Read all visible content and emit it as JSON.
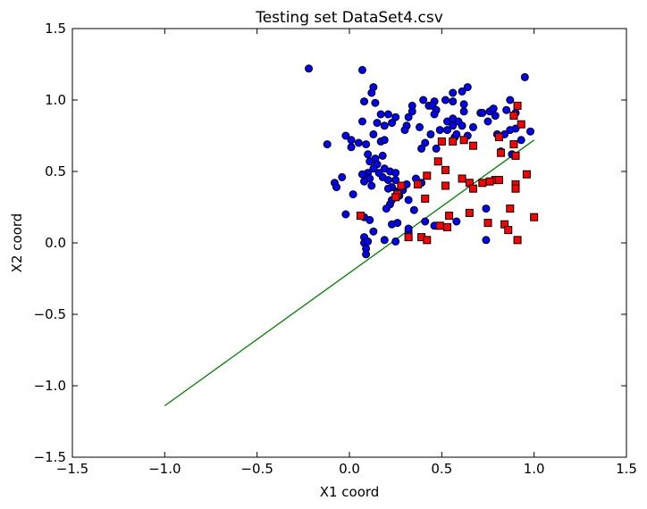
{
  "chart_data": {
    "type": "scatter",
    "title": "Testing set DataSet4.csv",
    "xlabel": "X1 coord",
    "ylabel": "X2 coord",
    "xlim": [
      -1.5,
      1.5
    ],
    "ylim": [
      -1.5,
      1.5
    ],
    "xticks": [
      -1.5,
      -1.0,
      -0.5,
      0.0,
      0.5,
      1.0,
      1.5
    ],
    "yticks": [
      -1.5,
      -1.0,
      -0.5,
      0.0,
      0.5,
      1.0,
      1.5
    ],
    "xtick_labels": [
      "−1.5",
      "−1.0",
      "−0.5",
      "0.0",
      "0.5",
      "1.0",
      "1.5"
    ],
    "ytick_labels": [
      "−1.5",
      "−1.0",
      "−0.5",
      "0.0",
      "0.5",
      "1.0",
      "1.5"
    ],
    "grid": false,
    "series": [
      {
        "marker": "circle",
        "color": "#0000ff",
        "points": [
          [
            -0.22,
            1.22
          ],
          [
            0.07,
            1.21
          ],
          [
            0.12,
            1.05
          ],
          [
            0.13,
            1.09
          ],
          [
            0.08,
            0.99
          ],
          [
            0.14,
            0.98
          ],
          [
            0.17,
            0.9
          ],
          [
            0.21,
            0.9
          ],
          [
            0.15,
            0.84
          ],
          [
            0.19,
            0.82
          ],
          [
            0.23,
            0.84
          ],
          [
            0.07,
            0.85
          ],
          [
            0.25,
            0.88
          ],
          [
            0.32,
            0.88
          ],
          [
            0.34,
            0.92
          ],
          [
            0.34,
            0.96
          ],
          [
            0.38,
            0.81
          ],
          [
            0.31,
            0.82
          ],
          [
            0.3,
            0.79
          ],
          [
            0.4,
            1.0
          ],
          [
            0.43,
            0.96
          ],
          [
            0.46,
            0.99
          ],
          [
            0.45,
            0.96
          ],
          [
            0.47,
            0.93
          ],
          [
            0.46,
            0.9
          ],
          [
            0.52,
            1.0
          ],
          [
            0.56,
            0.99
          ],
          [
            0.61,
            1.06
          ],
          [
            0.64,
            1.09
          ],
          [
            0.56,
            1.05
          ],
          [
            0.62,
            0.97
          ],
          [
            0.62,
            0.92
          ],
          [
            0.53,
            0.85
          ],
          [
            0.56,
            0.87
          ],
          [
            0.59,
            0.85
          ],
          [
            0.61,
            0.82
          ],
          [
            0.56,
            0.82
          ],
          [
            0.53,
            0.79
          ],
          [
            0.49,
            0.79
          ],
          [
            0.44,
            0.76
          ],
          [
            0.41,
            0.7
          ],
          [
            0.39,
            0.66
          ],
          [
            0.47,
            0.66
          ],
          [
            0.57,
            0.74
          ],
          [
            0.58,
            0.76
          ],
          [
            0.64,
            0.75
          ],
          [
            0.67,
            0.81
          ],
          [
            0.71,
            0.91
          ],
          [
            0.72,
            0.91
          ],
          [
            0.76,
            0.92
          ],
          [
            0.75,
            0.85
          ],
          [
            0.79,
            0.89
          ],
          [
            0.78,
            0.94
          ],
          [
            0.85,
            0.93
          ],
          [
            0.87,
            1.0
          ],
          [
            0.9,
            0.91
          ],
          [
            0.9,
            0.8
          ],
          [
            0.87,
            0.79
          ],
          [
            0.84,
            0.76
          ],
          [
            0.93,
            0.72
          ],
          [
            0.88,
            0.62
          ],
          [
            0.82,
            0.64
          ],
          [
            0.95,
            1.16
          ],
          [
            0.98,
            0.78
          ],
          [
            0.8,
            0.76
          ],
          [
            -0.12,
            0.69
          ],
          [
            -0.02,
            0.75
          ],
          [
            0.01,
            0.72
          ],
          [
            0.01,
            0.67
          ],
          [
            0.05,
            0.7
          ],
          [
            0.09,
            0.69
          ],
          [
            0.13,
            0.76
          ],
          [
            0.17,
            0.71
          ],
          [
            0.19,
            0.72
          ],
          [
            0.1,
            0.62
          ],
          [
            0.11,
            0.57
          ],
          [
            0.14,
            0.59
          ],
          [
            0.15,
            0.55
          ],
          [
            0.18,
            0.61
          ],
          [
            0.19,
            0.52
          ],
          [
            0.22,
            0.5
          ],
          [
            0.25,
            0.49
          ],
          [
            0.25,
            0.44
          ],
          [
            0.21,
            0.44
          ],
          [
            0.18,
            0.46
          ],
          [
            0.16,
            0.49
          ],
          [
            0.13,
            0.52
          ],
          [
            0.1,
            0.49
          ],
          [
            0.09,
            0.46
          ],
          [
            0.11,
            0.45
          ],
          [
            0.08,
            0.43
          ],
          [
            0.12,
            0.4
          ],
          [
            0.07,
            0.48
          ],
          [
            -0.04,
            0.46
          ],
          [
            -0.08,
            0.42
          ],
          [
            -0.07,
            0.39
          ],
          [
            0.02,
            0.34
          ],
          [
            0.23,
            0.39
          ],
          [
            0.21,
            0.38
          ],
          [
            0.26,
            0.36
          ],
          [
            0.27,
            0.33
          ],
          [
            0.29,
            0.37
          ],
          [
            0.31,
            0.41
          ],
          [
            0.36,
            0.45
          ],
          [
            0.39,
            0.42
          ],
          [
            0.32,
            0.3
          ],
          [
            0.35,
            0.23
          ],
          [
            0.22,
            0.27
          ],
          [
            0.23,
            0.3
          ],
          [
            0.2,
            0.24
          ],
          [
            0.26,
            0.14
          ],
          [
            0.23,
            0.13
          ],
          [
            -0.02,
            0.2
          ],
          [
            0.08,
            0.18
          ],
          [
            0.11,
            0.16
          ],
          [
            0.13,
            0.08
          ],
          [
            0.08,
            0.04
          ],
          [
            0.08,
            0.0
          ],
          [
            0.1,
            0.01
          ],
          [
            0.09,
            -0.04
          ],
          [
            0.09,
            -0.08
          ],
          [
            0.19,
            0.02
          ],
          [
            0.25,
            0.01
          ],
          [
            0.32,
            0.08
          ],
          [
            0.32,
            0.1
          ],
          [
            0.41,
            0.15
          ],
          [
            0.46,
            0.12
          ],
          [
            0.58,
            0.15
          ],
          [
            0.74,
            0.24
          ],
          [
            0.74,
            0.02
          ]
        ]
      },
      {
        "marker": "square",
        "color": "#ff0000",
        "points": [
          [
            0.91,
            0.96
          ],
          [
            0.89,
            0.89
          ],
          [
            0.93,
            0.83
          ],
          [
            0.81,
            0.74
          ],
          [
            0.89,
            0.69
          ],
          [
            0.82,
            0.63
          ],
          [
            0.9,
            0.61
          ],
          [
            0.5,
            0.71
          ],
          [
            0.56,
            0.71
          ],
          [
            0.62,
            0.72
          ],
          [
            0.67,
            0.68
          ],
          [
            0.48,
            0.57
          ],
          [
            0.52,
            0.51
          ],
          [
            0.42,
            0.47
          ],
          [
            0.37,
            0.41
          ],
          [
            0.28,
            0.4
          ],
          [
            0.26,
            0.34
          ],
          [
            0.41,
            0.31
          ],
          [
            0.52,
            0.4
          ],
          [
            0.61,
            0.45
          ],
          [
            0.65,
            0.42
          ],
          [
            0.67,
            0.38
          ],
          [
            0.72,
            0.42
          ],
          [
            0.79,
            0.44
          ],
          [
            0.81,
            0.44
          ],
          [
            0.9,
            0.41
          ],
          [
            0.9,
            0.38
          ],
          [
            0.96,
            0.48
          ],
          [
            0.76,
            0.43
          ],
          [
            0.06,
            0.19
          ],
          [
            0.25,
            0.32
          ],
          [
            0.54,
            0.19
          ],
          [
            0.49,
            0.12
          ],
          [
            0.53,
            0.11
          ],
          [
            0.65,
            0.21
          ],
          [
            0.75,
            0.14
          ],
          [
            0.84,
            0.13
          ],
          [
            0.87,
            0.24
          ],
          [
            1.0,
            0.18
          ],
          [
            0.86,
            0.09
          ],
          [
            0.91,
            0.02
          ],
          [
            0.32,
            0.04
          ],
          [
            0.39,
            0.04
          ],
          [
            0.42,
            0.02
          ]
        ]
      }
    ],
    "line": {
      "color": "#008000",
      "points": [
        [
          -1.0,
          -1.14
        ],
        [
          1.0,
          0.72
        ]
      ]
    }
  }
}
